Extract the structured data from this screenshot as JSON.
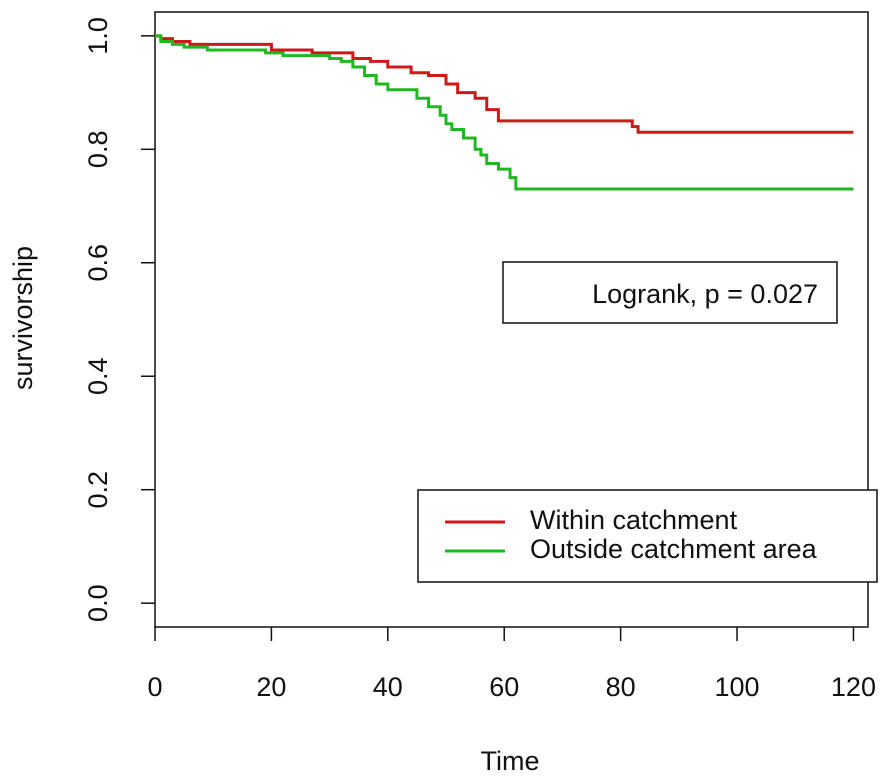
{
  "chart_data": {
    "type": "line",
    "step": "post",
    "xlabel": "Time",
    "ylabel": "survivorship",
    "annotation": "Logrank, p = 0.027",
    "xlim": [
      0,
      122.5
    ],
    "ylim": [
      -0.042,
      1.042
    ],
    "xticks": [
      0,
      20,
      40,
      60,
      80,
      100,
      120
    ],
    "yticks": [
      {
        "value": 0,
        "label": "0.0"
      },
      0.2,
      0.4,
      0.6,
      0.8,
      {
        "value": 1,
        "label": "1.0"
      }
    ],
    "legend": "bottom-right",
    "series": [
      {
        "name": "Within catchment",
        "color": "#d01818",
        "x": [
          0,
          1,
          3,
          6,
          20,
          27,
          34,
          37,
          40,
          44,
          47,
          50,
          52,
          55,
          57,
          59,
          82,
          83,
          120
        ],
        "values": [
          1.0,
          0.995,
          0.99,
          0.985,
          0.975,
          0.97,
          0.96,
          0.955,
          0.945,
          0.935,
          0.93,
          0.915,
          0.9,
          0.89,
          0.87,
          0.85,
          0.84,
          0.83,
          0.83
        ]
      },
      {
        "name": "Outside catchment area",
        "color": "#20b820",
        "x": [
          0,
          1,
          3,
          5,
          9,
          19,
          22,
          30,
          32,
          34,
          36,
          38,
          40,
          45,
          47,
          49,
          50,
          51,
          53,
          55,
          56,
          57,
          59,
          61,
          62,
          120
        ],
        "values": [
          1.0,
          0.99,
          0.985,
          0.98,
          0.975,
          0.97,
          0.965,
          0.96,
          0.955,
          0.945,
          0.93,
          0.915,
          0.905,
          0.89,
          0.875,
          0.86,
          0.845,
          0.835,
          0.82,
          0.8,
          0.79,
          0.775,
          0.765,
          0.75,
          0.73,
          0.73
        ]
      }
    ]
  }
}
